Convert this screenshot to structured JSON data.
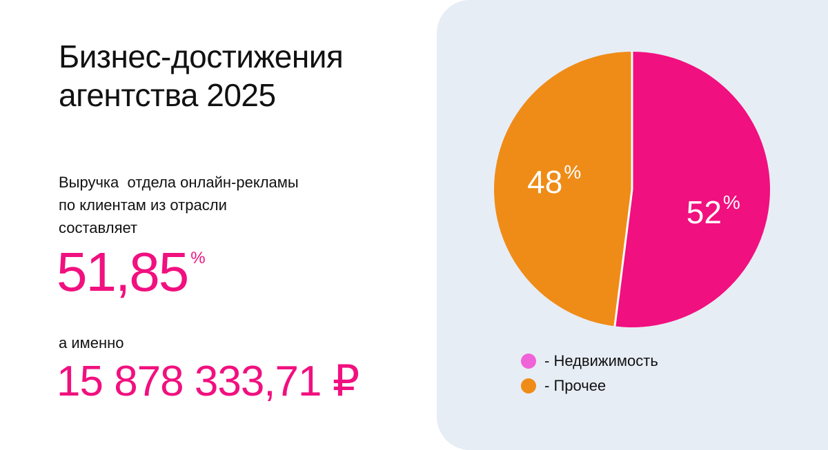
{
  "title": {
    "line1": "Бизнес-достижения",
    "line2": "агентства 2025"
  },
  "description": {
    "line1": "Выручка  отдела онлайн-рекламы",
    "line2": "по клиентам из отрасли",
    "line3": "составляет"
  },
  "share": {
    "value": "51,85",
    "unit": "%"
  },
  "namely_label": "а именно",
  "amount": "15 878 333,71 ₽",
  "colors": {
    "accent": "#f1107f",
    "panel": "#e7edf5",
    "other": "#ef8c17",
    "legend_real_estate": "#f062d8"
  },
  "chart_data": {
    "type": "pie",
    "slices": [
      {
        "name": "Недвижимость",
        "value": 52,
        "label": "52",
        "unit": "%",
        "color": "#f1107f",
        "legend_color": "#f062d8"
      },
      {
        "name": "Прочее",
        "value": 48,
        "label": "48",
        "unit": "%",
        "color": "#ef8c17",
        "legend_color": "#ef8c17"
      }
    ],
    "start_angle_deg": 0,
    "direction": "clockwise",
    "legend_position": "bottom",
    "legend": [
      {
        "text": "- Недвижимость"
      },
      {
        "text": "- Прочее"
      }
    ]
  }
}
